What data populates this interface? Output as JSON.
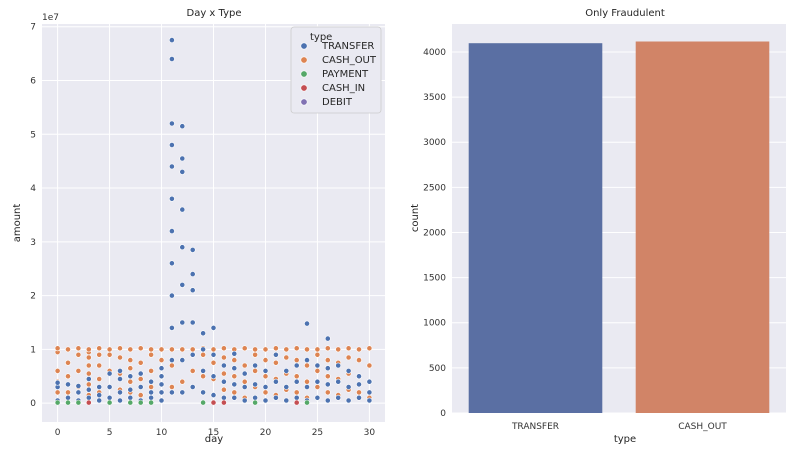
{
  "chart_data": [
    {
      "type": "scatter",
      "title": "Day x Type",
      "xlabel": "day",
      "ylabel": "amount",
      "y_multiplier_label": "1e7",
      "xlim": [
        -1.5,
        31.5
      ],
      "ylim": [
        -0.35,
        7.05
      ],
      "x_ticks": [
        0,
        5,
        10,
        15,
        20,
        25,
        30
      ],
      "y_ticks": [
        0,
        1,
        2,
        3,
        4,
        5,
        6,
        7
      ],
      "grid": true,
      "legend": {
        "placement": "top-right",
        "title": "type",
        "entries": [
          "TRANSFER",
          "CASH_OUT",
          "PAYMENT",
          "CASH_IN",
          "DEBIT"
        ]
      },
      "series": [
        {
          "name": "CASH_OUT",
          "color": "#dd8452",
          "points": [
            [
              0,
              0.2
            ],
            [
              0,
              0.4
            ],
            [
              0,
              0.6
            ],
            [
              0,
              0.95
            ],
            [
              0,
              1.02
            ],
            [
              1,
              0.2
            ],
            [
              1,
              0.5
            ],
            [
              1,
              0.75
            ],
            [
              1,
              1.0
            ],
            [
              2,
              0.3
            ],
            [
              2,
              0.6
            ],
            [
              2,
              0.9
            ],
            [
              2,
              1.02
            ],
            [
              3,
              0.15
            ],
            [
              3,
              0.35
            ],
            [
              3,
              0.55
            ],
            [
              3,
              0.7
            ],
            [
              3,
              0.85
            ],
            [
              3,
              0.95
            ],
            [
              3,
              1.0
            ],
            [
              4,
              0.2
            ],
            [
              4,
              0.45
            ],
            [
              4,
              0.7
            ],
            [
              4,
              0.9
            ],
            [
              4,
              1.02
            ],
            [
              5,
              0.1
            ],
            [
              5,
              0.3
            ],
            [
              5,
              0.6
            ],
            [
              5,
              0.9
            ],
            [
              5,
              1.0
            ],
            [
              6,
              0.25
            ],
            [
              6,
              0.55
            ],
            [
              6,
              0.85
            ],
            [
              6,
              1.02
            ],
            [
              7,
              0.2
            ],
            [
              7,
              0.4
            ],
            [
              7,
              0.65
            ],
            [
              7,
              0.8
            ],
            [
              7,
              1.0
            ],
            [
              8,
              0.15
            ],
            [
              8,
              0.45
            ],
            [
              8,
              0.75
            ],
            [
              8,
              1.02
            ],
            [
              9,
              0.3
            ],
            [
              9,
              0.6
            ],
            [
              9,
              0.9
            ],
            [
              9,
              1.0
            ],
            [
              10,
              0.2
            ],
            [
              10,
              0.5
            ],
            [
              10,
              0.8
            ],
            [
              10,
              1.0
            ],
            [
              11,
              0.3
            ],
            [
              11,
              0.7
            ],
            [
              11,
              1.0
            ],
            [
              12,
              0.4
            ],
            [
              12,
              0.8
            ],
            [
              12,
              1.0
            ],
            [
              13,
              0.3
            ],
            [
              13,
              0.6
            ],
            [
              13,
              1.0
            ],
            [
              14,
              0.2
            ],
            [
              14,
              0.5
            ],
            [
              14,
              0.9
            ],
            [
              14,
              1.02
            ],
            [
              15,
              0.15
            ],
            [
              15,
              0.45
            ],
            [
              15,
              0.75
            ],
            [
              15,
              1.0
            ],
            [
              16,
              0.25
            ],
            [
              16,
              0.55
            ],
            [
              16,
              0.85
            ],
            [
              16,
              1.02
            ],
            [
              17,
              0.2
            ],
            [
              17,
              0.5
            ],
            [
              17,
              0.8
            ],
            [
              17,
              1.0
            ],
            [
              18,
              0.1
            ],
            [
              18,
              0.4
            ],
            [
              18,
              0.7
            ],
            [
              18,
              1.02
            ],
            [
              19,
              0.3
            ],
            [
              19,
              0.6
            ],
            [
              19,
              0.9
            ],
            [
              19,
              1.0
            ],
            [
              20,
              0.2
            ],
            [
              20,
              0.5
            ],
            [
              20,
              0.8
            ],
            [
              20,
              1.0
            ],
            [
              21,
              0.15
            ],
            [
              21,
              0.45
            ],
            [
              21,
              0.75
            ],
            [
              21,
              1.02
            ],
            [
              22,
              0.25
            ],
            [
              22,
              0.55
            ],
            [
              22,
              0.85
            ],
            [
              22,
              1.0
            ],
            [
              23,
              0.2
            ],
            [
              23,
              0.5
            ],
            [
              23,
              0.8
            ],
            [
              23,
              1.02
            ],
            [
              24,
              0.1
            ],
            [
              24,
              0.4
            ],
            [
              24,
              0.7
            ],
            [
              24,
              1.0
            ],
            [
              25,
              0.3
            ],
            [
              25,
              0.6
            ],
            [
              25,
              0.9
            ],
            [
              25,
              1.0
            ],
            [
              26,
              0.2
            ],
            [
              26,
              0.5
            ],
            [
              26,
              0.8
            ],
            [
              26,
              1.02
            ],
            [
              27,
              0.15
            ],
            [
              27,
              0.45
            ],
            [
              27,
              0.75
            ],
            [
              27,
              1.0
            ],
            [
              28,
              0.25
            ],
            [
              28,
              0.55
            ],
            [
              28,
              0.85
            ],
            [
              28,
              1.02
            ],
            [
              29,
              0.2
            ],
            [
              29,
              0.5
            ],
            [
              29,
              0.8
            ],
            [
              29,
              1.0
            ],
            [
              30,
              0.1
            ],
            [
              30,
              0.4
            ],
            [
              30,
              0.7
            ],
            [
              30,
              1.02
            ]
          ]
        },
        {
          "name": "TRANSFER",
          "color": "#4c72b0",
          "points": [
            [
              0,
              0.05
            ],
            [
              0,
              0.3
            ],
            [
              0,
              0.38
            ],
            [
              1,
              0.1
            ],
            [
              1,
              0.35
            ],
            [
              2,
              0.05
            ],
            [
              2,
              0.2
            ],
            [
              2,
              0.32
            ],
            [
              3,
              0.1
            ],
            [
              3,
              0.25
            ],
            [
              3,
              0.45
            ],
            [
              4,
              0.05
            ],
            [
              4,
              0.15
            ],
            [
              4,
              0.3
            ],
            [
              5,
              0.1
            ],
            [
              5,
              0.3
            ],
            [
              5,
              0.55
            ],
            [
              6,
              0.05
            ],
            [
              6,
              0.2
            ],
            [
              6,
              0.45
            ],
            [
              6,
              0.6
            ],
            [
              7,
              0.1
            ],
            [
              7,
              0.25
            ],
            [
              7,
              0.5
            ],
            [
              8,
              0.05
            ],
            [
              8,
              0.3
            ],
            [
              8,
              0.55
            ],
            [
              9,
              0.1
            ],
            [
              9,
              0.2
            ],
            [
              9,
              0.4
            ],
            [
              10,
              0.05
            ],
            [
              10,
              0.2
            ],
            [
              10,
              0.35
            ],
            [
              10,
              0.5
            ],
            [
              10,
              0.65
            ],
            [
              11,
              0.2
            ],
            [
              11,
              0.8
            ],
            [
              11,
              1.4
            ],
            [
              11,
              2.0
            ],
            [
              11,
              2.6
            ],
            [
              11,
              3.2
            ],
            [
              11,
              3.8
            ],
            [
              11,
              4.4
            ],
            [
              11,
              4.8
            ],
            [
              11,
              5.2
            ],
            [
              11,
              6.4
            ],
            [
              11,
              6.75
            ],
            [
              12,
              0.2
            ],
            [
              12,
              0.8
            ],
            [
              12,
              1.5
            ],
            [
              12,
              2.2
            ],
            [
              12,
              2.9
            ],
            [
              12,
              3.6
            ],
            [
              12,
              4.3
            ],
            [
              12,
              4.55
            ],
            [
              12,
              5.15
            ],
            [
              13,
              0.3
            ],
            [
              13,
              0.9
            ],
            [
              13,
              1.5
            ],
            [
              13,
              2.1
            ],
            [
              13,
              2.4
            ],
            [
              13,
              2.85
            ],
            [
              14,
              0.2
            ],
            [
              14,
              0.6
            ],
            [
              14,
              1.0
            ],
            [
              14,
              1.3
            ],
            [
              15,
              0.15
            ],
            [
              15,
              0.5
            ],
            [
              15,
              0.9
            ],
            [
              15,
              1.4
            ],
            [
              16,
              0.1
            ],
            [
              16,
              0.4
            ],
            [
              16,
              0.7
            ],
            [
              17,
              0.1
            ],
            [
              17,
              0.35
            ],
            [
              17,
              0.65
            ],
            [
              17,
              0.92
            ],
            [
              18,
              0.05
            ],
            [
              18,
              0.3
            ],
            [
              18,
              0.55
            ],
            [
              19,
              0.1
            ],
            [
              19,
              0.35
            ],
            [
              19,
              0.7
            ],
            [
              20,
              0.05
            ],
            [
              20,
              0.3
            ],
            [
              20,
              0.6
            ],
            [
              21,
              0.1
            ],
            [
              21,
              0.4
            ],
            [
              21,
              0.9
            ],
            [
              22,
              0.05
            ],
            [
              22,
              0.3
            ],
            [
              22,
              0.6
            ],
            [
              23,
              0.1
            ],
            [
              23,
              0.4
            ],
            [
              23,
              0.7
            ],
            [
              24,
              0.05
            ],
            [
              24,
              0.3
            ],
            [
              24,
              0.8
            ],
            [
              24,
              1.48
            ],
            [
              25,
              0.1
            ],
            [
              25,
              0.4
            ],
            [
              25,
              0.7
            ],
            [
              26,
              0.05
            ],
            [
              26,
              0.35
            ],
            [
              26,
              0.65
            ],
            [
              26,
              1.2
            ],
            [
              27,
              0.1
            ],
            [
              27,
              0.4
            ],
            [
              27,
              0.7
            ],
            [
              28,
              0.05
            ],
            [
              28,
              0.3
            ],
            [
              28,
              0.6
            ],
            [
              29,
              0.1
            ],
            [
              29,
              0.35
            ],
            [
              29,
              0.5
            ],
            [
              30,
              0.05
            ],
            [
              30,
              0.2
            ],
            [
              30,
              0.4
            ]
          ]
        },
        {
          "name": "PAYMENT",
          "color": "#55a868",
          "points": [
            [
              0,
              0.01
            ],
            [
              1,
              0.01
            ],
            [
              2,
              0.01
            ],
            [
              5,
              0.01
            ],
            [
              7,
              0.01
            ],
            [
              8,
              0.01
            ],
            [
              9,
              0.01
            ],
            [
              14,
              0.01
            ],
            [
              19,
              0.01
            ],
            [
              24,
              0.01
            ]
          ]
        },
        {
          "name": "CASH_IN",
          "color": "#c44e52",
          "points": [
            [
              3,
              0.01
            ],
            [
              15,
              0.01
            ],
            [
              16,
              0.01
            ],
            [
              23,
              0.01
            ]
          ]
        },
        {
          "name": "DEBIT",
          "color": "#8172b3",
          "points": []
        }
      ]
    },
    {
      "type": "bar",
      "title": "Only Fraudulent",
      "xlabel": "type",
      "ylabel": "count",
      "categories": [
        "TRANSFER",
        "CASH_OUT"
      ],
      "values": [
        4097,
        4116
      ],
      "colors": [
        "#5a6fa3",
        "#d18467"
      ],
      "ylim": [
        0,
        4310
      ],
      "y_ticks": [
        0,
        500,
        1000,
        1500,
        2000,
        2500,
        3000,
        3500,
        4000
      ],
      "grid": true
    }
  ]
}
